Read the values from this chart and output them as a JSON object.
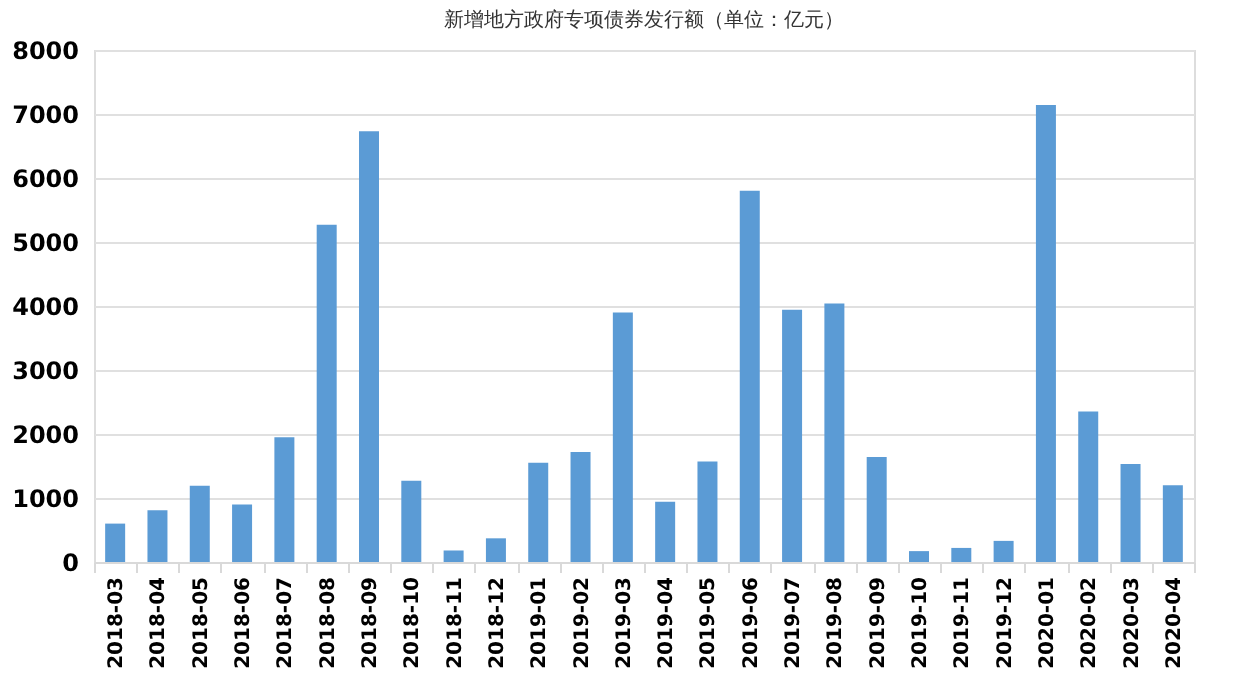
{
  "chart_data": {
    "type": "bar",
    "title": "新增地方政府专项债券发行额（单位：亿元）",
    "categories": [
      "2018-03",
      "2018-04",
      "2018-05",
      "2018-06",
      "2018-07",
      "2018-08",
      "2018-09",
      "2018-10",
      "2018-11",
      "2018-12",
      "2019-01",
      "2019-02",
      "2019-03",
      "2019-04",
      "2019-05",
      "2019-06",
      "2019-07",
      "2019-08",
      "2019-09",
      "2019-10",
      "2019-11",
      "2019-12",
      "2020-01",
      "2020-02",
      "2020-03",
      "2020-04"
    ],
    "values": [
      600,
      810,
      1190,
      900,
      1950,
      5270,
      6730,
      1270,
      180,
      370,
      1550,
      1720,
      3900,
      940,
      1570,
      5800,
      3940,
      4040,
      1640,
      170,
      220,
      330,
      7140,
      2350,
      1530,
      1200
    ],
    "color": "#5b9bd5",
    "ylim": [
      0,
      8000
    ],
    "yticks": [
      0,
      1000,
      2000,
      3000,
      4000,
      5000,
      6000,
      7000,
      8000
    ],
    "grid": "y"
  }
}
